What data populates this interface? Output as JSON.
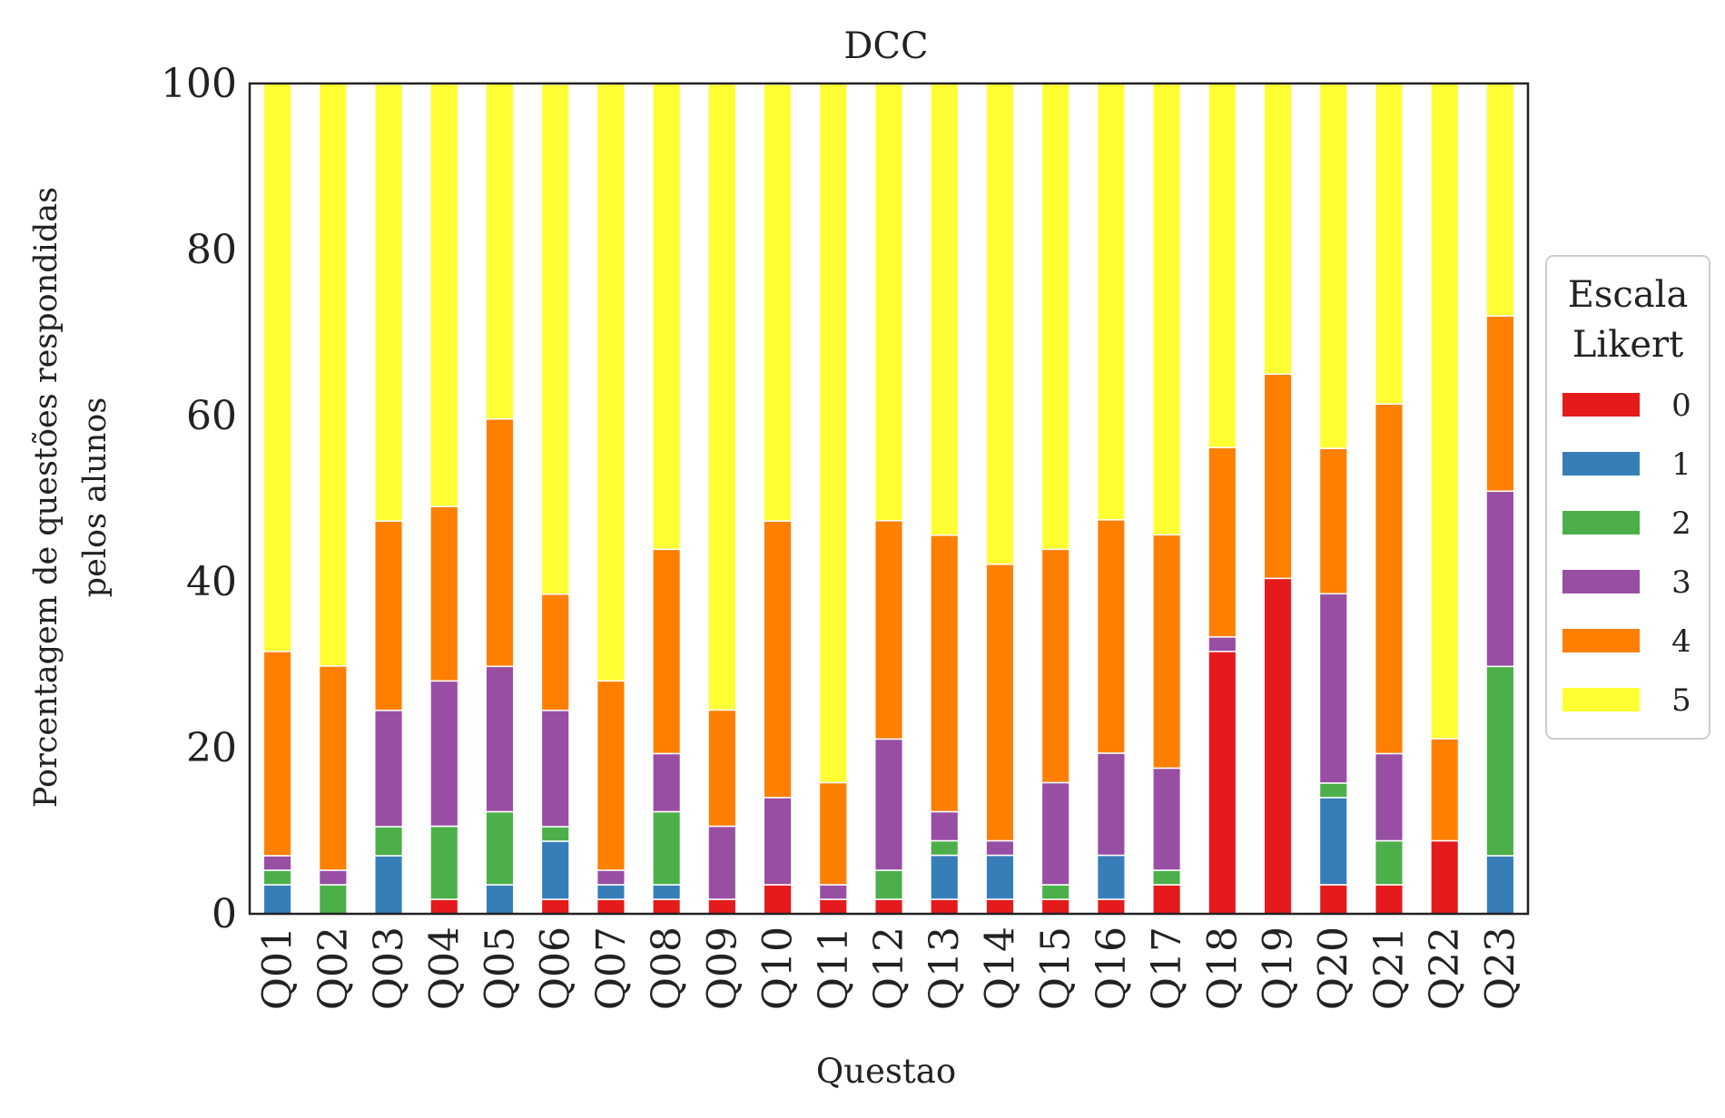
{
  "chart_data": {
    "type": "bar",
    "stacked": true,
    "title": "DCC",
    "xlabel": "Questao",
    "ylabel_lines": [
      "Porcentagem de questões respondidas",
      "pelos alunos"
    ],
    "ylim": [
      0,
      100
    ],
    "yticks": [
      0,
      20,
      40,
      60,
      80,
      100
    ],
    "grid": false,
    "legend": {
      "title_lines": [
        "Escala",
        "Likert"
      ],
      "placement": "center-right-outside"
    },
    "categories": [
      "Q01",
      "Q02",
      "Q03",
      "Q04",
      "Q05",
      "Q06",
      "Q07",
      "Q08",
      "Q09",
      "Q10",
      "Q11",
      "Q12",
      "Q13",
      "Q14",
      "Q15",
      "Q16",
      "Q17",
      "Q18",
      "Q19",
      "Q20",
      "Q21",
      "Q22",
      "Q23"
    ],
    "series": [
      {
        "name": "0",
        "color": "#e41a1c",
        "values": [
          0,
          0,
          0,
          1.75,
          0,
          1.75,
          1.75,
          1.75,
          1.75,
          3.5,
          1.75,
          1.75,
          1.75,
          1.75,
          1.75,
          1.75,
          3.5,
          31.6,
          40.4,
          3.5,
          3.5,
          8.8,
          0
        ]
      },
      {
        "name": "1",
        "color": "#377eb8",
        "values": [
          3.5,
          0,
          7.0,
          0,
          3.5,
          7.0,
          1.75,
          1.75,
          0,
          0,
          0,
          0,
          5.3,
          5.3,
          0,
          5.3,
          0,
          0,
          0,
          10.5,
          0,
          0,
          7.0
        ]
      },
      {
        "name": "2",
        "color": "#4daf4a",
        "values": [
          1.75,
          3.5,
          3.5,
          8.8,
          8.8,
          1.75,
          0,
          8.8,
          0,
          0,
          0,
          3.5,
          1.75,
          0,
          1.75,
          0,
          1.75,
          0,
          0,
          1.75,
          5.3,
          0,
          22.8
        ]
      },
      {
        "name": "3",
        "color": "#984ea3",
        "values": [
          1.75,
          1.75,
          14.0,
          17.5,
          17.5,
          14.0,
          1.75,
          7.0,
          8.8,
          10.5,
          1.75,
          15.8,
          3.5,
          1.75,
          12.3,
          12.3,
          12.3,
          1.75,
          0,
          22.8,
          10.5,
          0,
          21.1
        ]
      },
      {
        "name": "4",
        "color": "#ff7f00",
        "values": [
          24.6,
          24.6,
          22.8,
          21.0,
          29.8,
          14.0,
          22.8,
          24.6,
          14.0,
          33.3,
          12.3,
          26.3,
          33.3,
          33.3,
          28.1,
          28.1,
          28.1,
          22.8,
          24.6,
          17.5,
          42.1,
          12.3,
          21.1
        ]
      },
      {
        "name": "5",
        "color": "#ffff33",
        "values": [
          68.4,
          70.2,
          52.6,
          50.9,
          40.4,
          61.4,
          71.9,
          56.1,
          75.4,
          52.6,
          84.2,
          52.6,
          54.4,
          57.9,
          56.1,
          52.6,
          54.4,
          43.9,
          35.1,
          43.9,
          38.6,
          78.9,
          28.1
        ]
      }
    ]
  }
}
